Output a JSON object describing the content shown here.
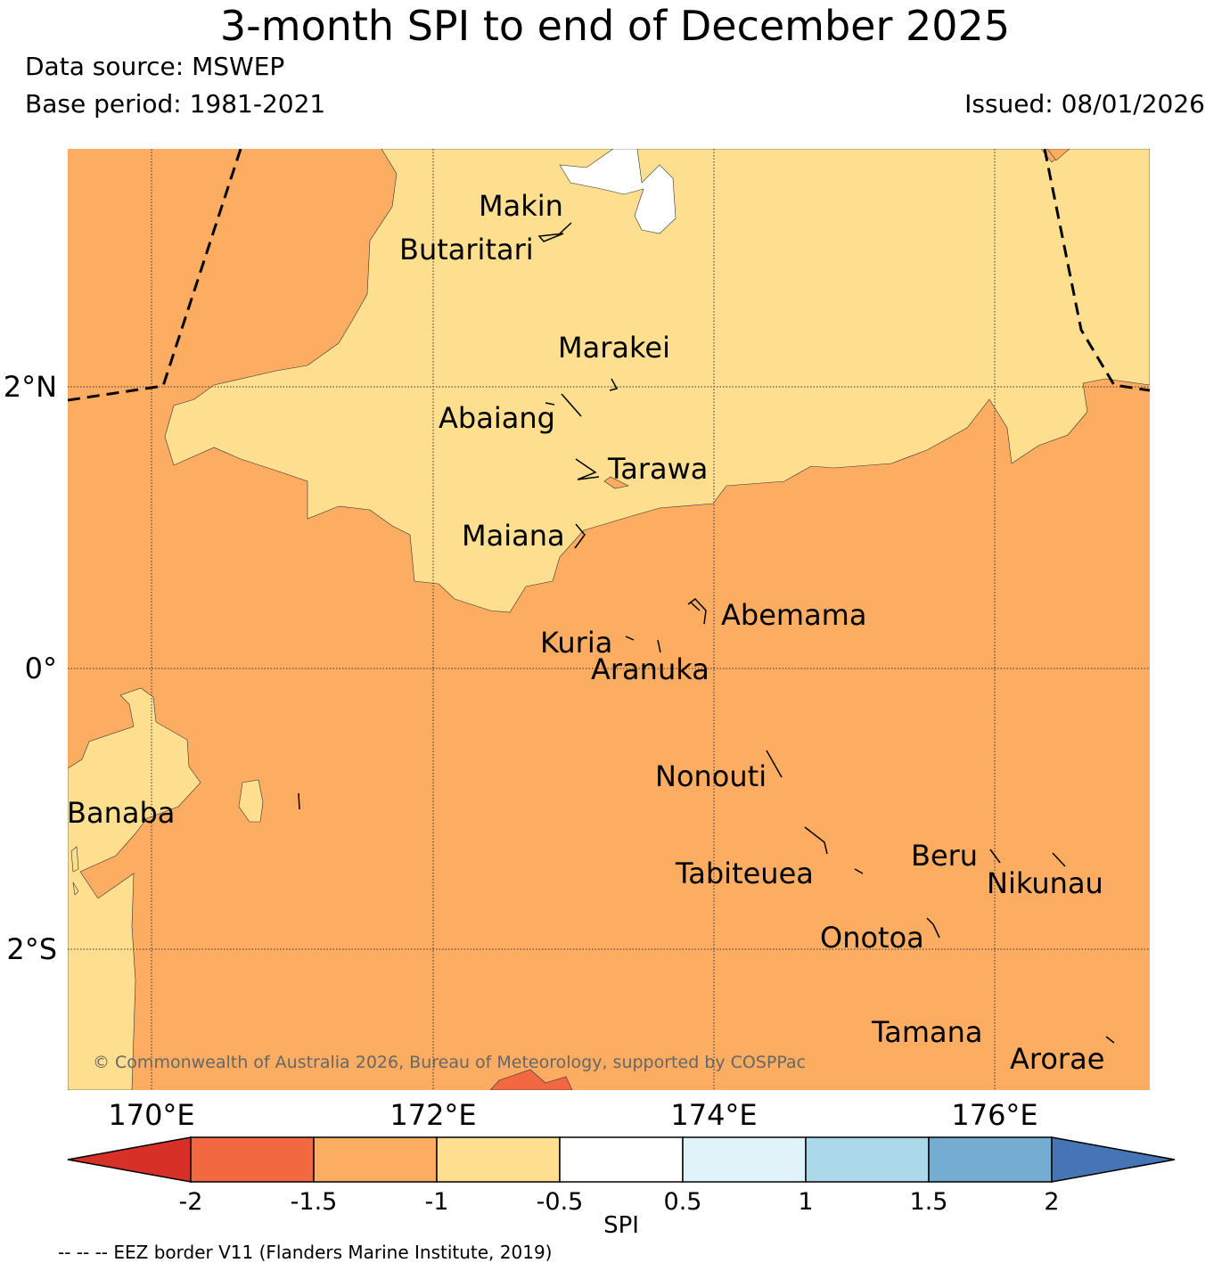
{
  "header": {
    "title": "3-month SPI to end of December 2025",
    "data_source": "Data source: MSWEP",
    "base_period": "Base period: 1981-2021",
    "issued": "Issued: 08/01/2026"
  },
  "map": {
    "axes": {
      "latitude_labels": [
        "2°N",
        "0°",
        "2°S"
      ],
      "longitude_labels": [
        "170°E",
        "172°E",
        "174°E",
        "176°E"
      ]
    },
    "fill_colors": {
      "spi_-1.5_to_-1": "#fcad62",
      "spi_-1_to_-0.5": "#fedf8f",
      "spi_-2_to_-1.5": "#f26841",
      "spi_-0.5_to_0.5": "#ffffff"
    },
    "islands": [
      "Makin",
      "Butaritari",
      "Marakei",
      "Abaiang",
      "Tarawa",
      "Maiana",
      "Abemama",
      "Kuria",
      "Aranuka",
      "Nonouti",
      "Banaba",
      "Beru",
      "Tabiteuea",
      "Nikunau",
      "Onotoa",
      "Tamana",
      "Arorae"
    ],
    "copyright": "© Commonwealth of Australia 2026, Bureau of Meteorology, supported by COSPPac"
  },
  "colorbar": {
    "label": "SPI",
    "ticks": [
      "-2",
      "-1.5",
      "-1",
      "-0.5",
      "0.5",
      "1",
      "1.5",
      "2"
    ],
    "colors": [
      "#d73027",
      "#f26841",
      "#fcad62",
      "#fedf8f",
      "#ffffff",
      "#e0f3f8",
      "#abd9e9",
      "#74add1",
      "#4575b4"
    ]
  },
  "footer": {
    "eez_note": "-- -- -- EEZ border V11 (Flanders Marine Institute, 2019)"
  }
}
